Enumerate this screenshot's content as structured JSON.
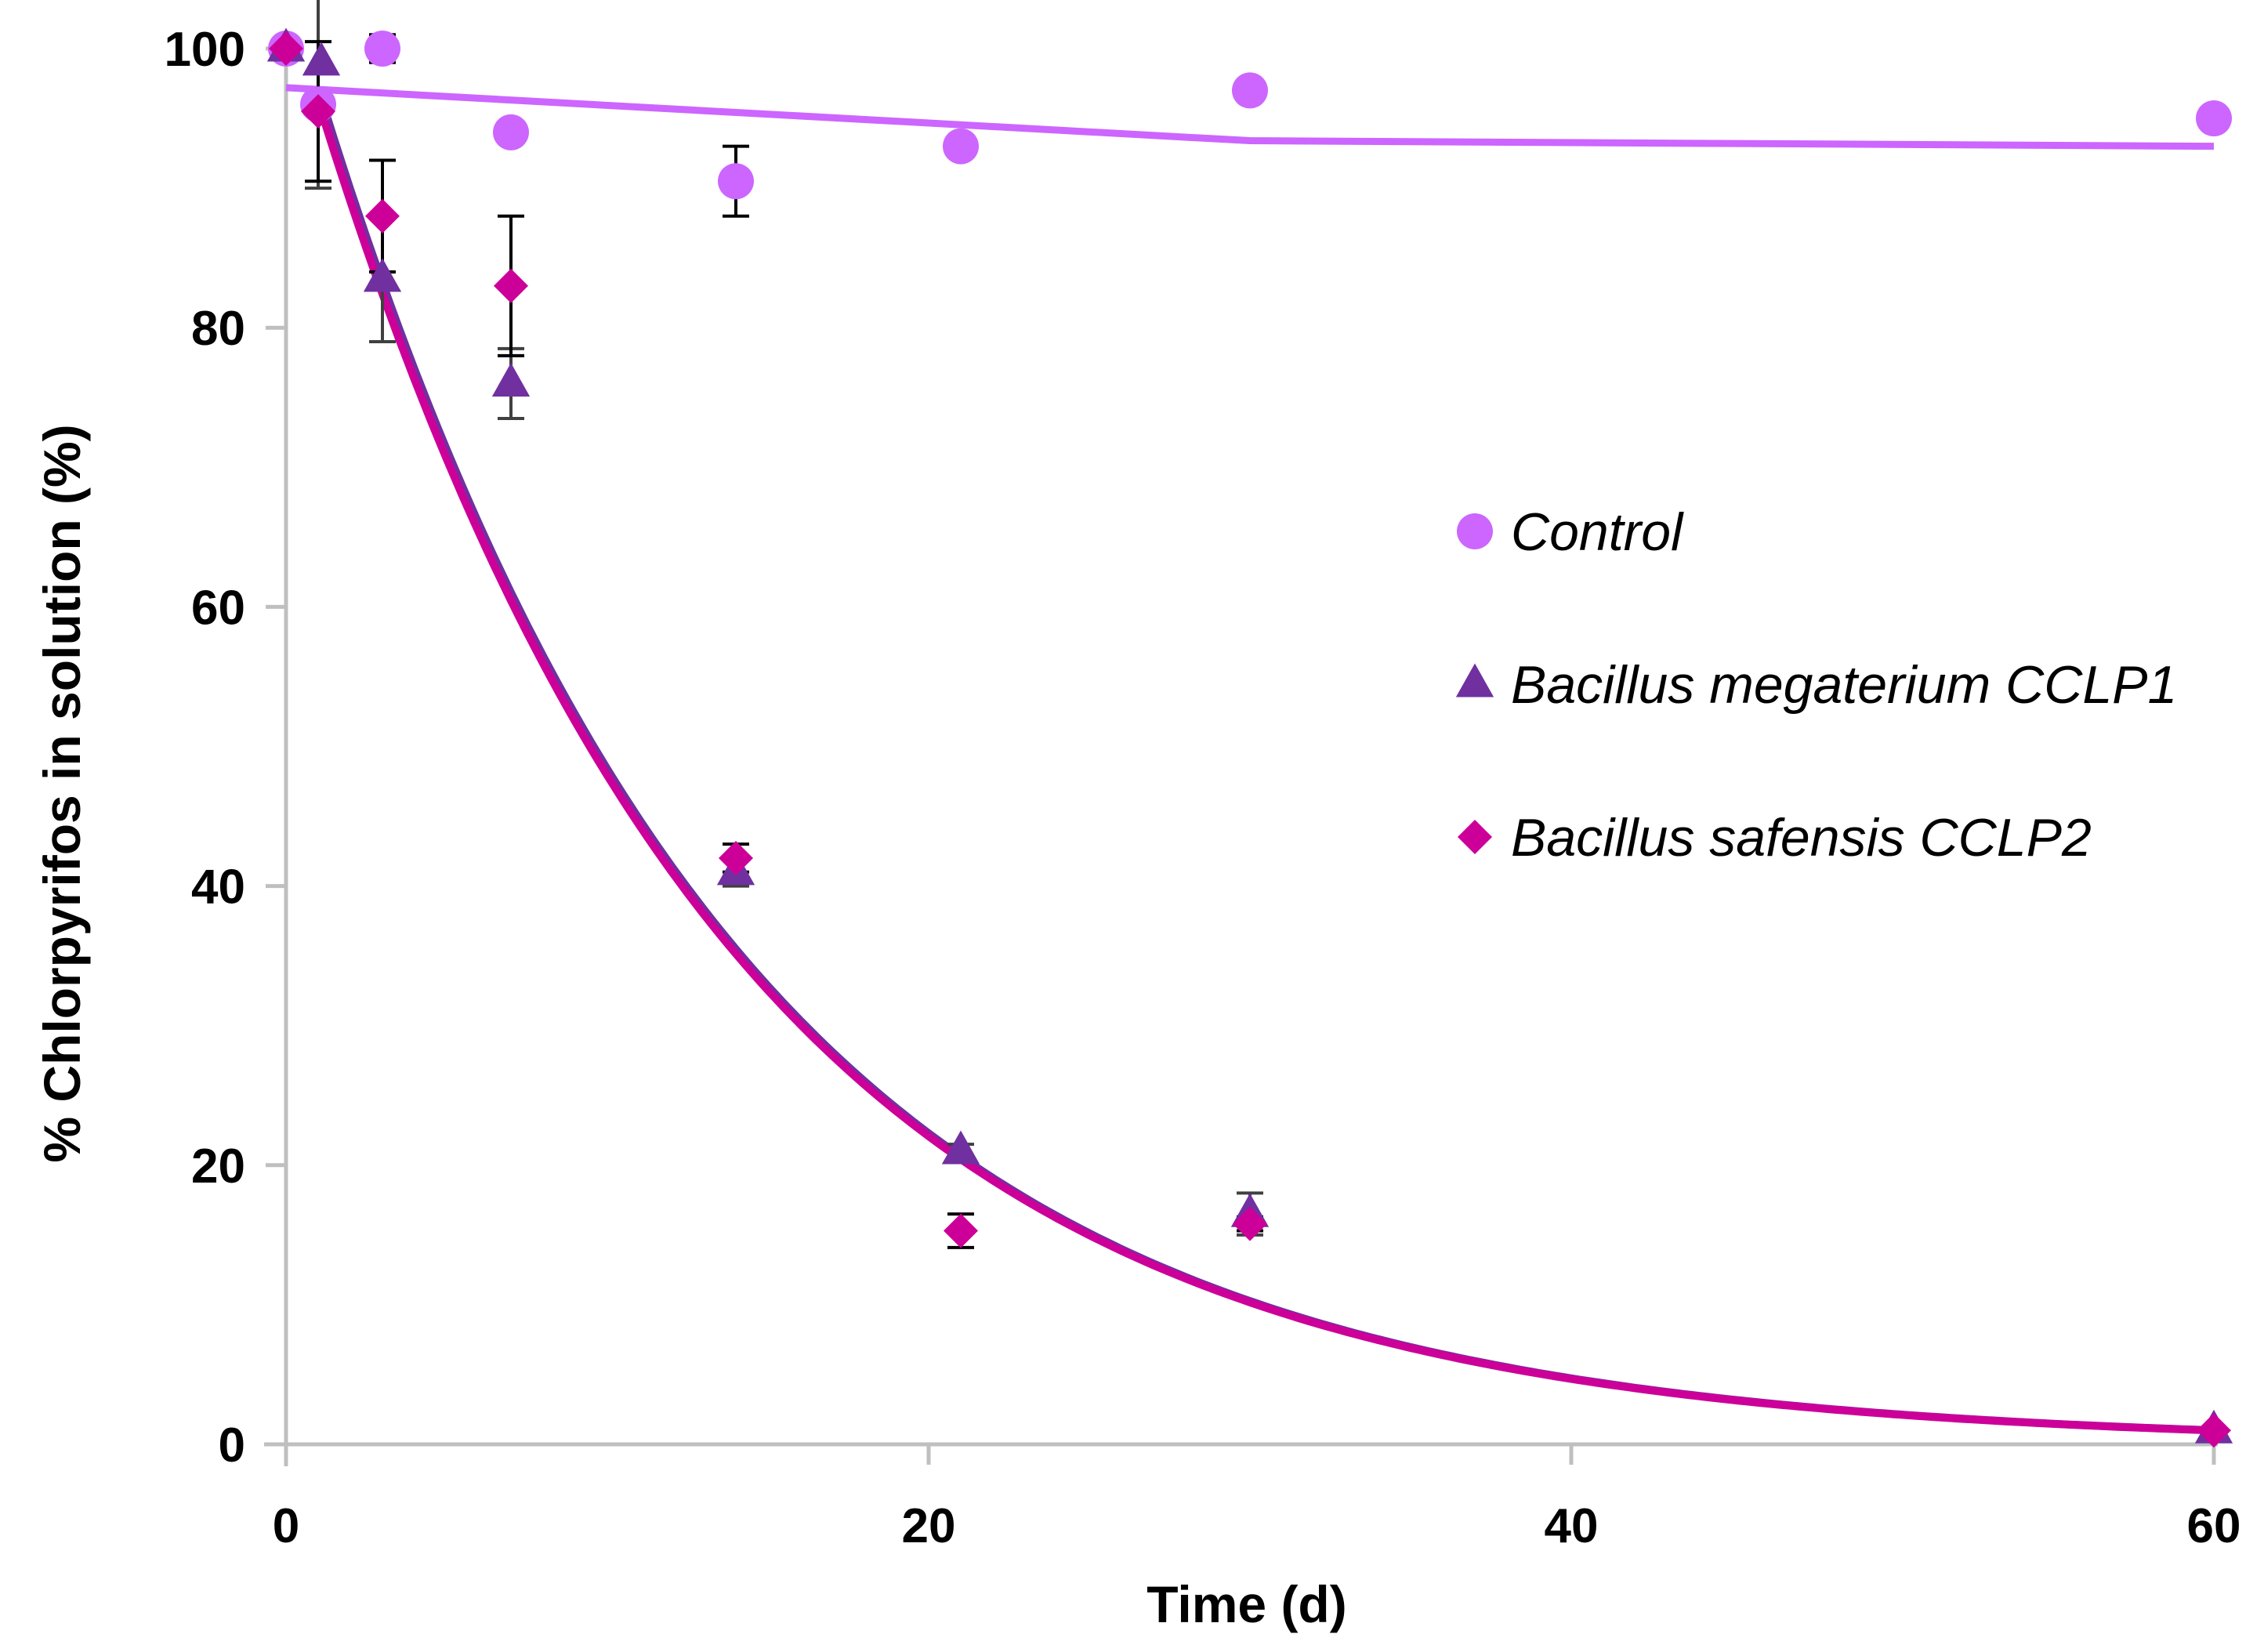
{
  "chart_data": {
    "type": "scatter",
    "xlabel": "Time (d)",
    "ylabel": "% Chlorpyrifos in solution (%)",
    "xlim": [
      0,
      60
    ],
    "ylim": [
      0,
      100
    ],
    "x_ticks": [
      0,
      20,
      40,
      60
    ],
    "y_ticks": [
      0,
      20,
      40,
      60,
      80,
      100
    ],
    "grid": false,
    "legend_position": "right-center",
    "colors": {
      "control": "#cc66ff",
      "megaterium": "#7030a0",
      "safensis": "#cc0099",
      "axis": "#bfbfbf"
    },
    "series": [
      {
        "name": "Control",
        "key": "control",
        "marker": "circle",
        "x": [
          0,
          1,
          3,
          7,
          14,
          21,
          30,
          60
        ],
        "y": [
          100,
          96,
          100,
          94,
          90.5,
          93,
          97,
          95
        ],
        "yerr": [
          0,
          0,
          1,
          0,
          2.5,
          0,
          0,
          0
        ],
        "fit": {
          "type": "linear-segments",
          "x": [
            0,
            30,
            60
          ],
          "y": [
            97.2,
            93.4,
            93
          ]
        }
      },
      {
        "name": "Bacillus megaterium CCLP1",
        "key": "megaterium",
        "marker": "triangle",
        "x": [
          0,
          1,
          3,
          7,
          14,
          21,
          30,
          60
        ],
        "y": [
          100,
          99,
          83.5,
          76,
          41,
          21,
          16.5,
          1
        ],
        "yerr": [
          0,
          9,
          4.5,
          2.5,
          1,
          0.5,
          1.5,
          0
        ],
        "fit": {
          "type": "exponential",
          "a": 105,
          "k": 0.0775,
          "x_start": 1
        }
      },
      {
        "name": "Bacillus safensis CCLP2",
        "key": "safensis",
        "marker": "diamond",
        "x": [
          0,
          1,
          3,
          7,
          14,
          21,
          30,
          60
        ],
        "y": [
          100,
          95.5,
          88,
          83,
          42,
          15.3,
          15.8,
          1
        ],
        "yerr": [
          0,
          5,
          4,
          5,
          1,
          1.2,
          0.5,
          0
        ],
        "fit": {
          "type": "exponential",
          "a": 104,
          "k": 0.0775,
          "x_start": 1
        }
      }
    ]
  }
}
